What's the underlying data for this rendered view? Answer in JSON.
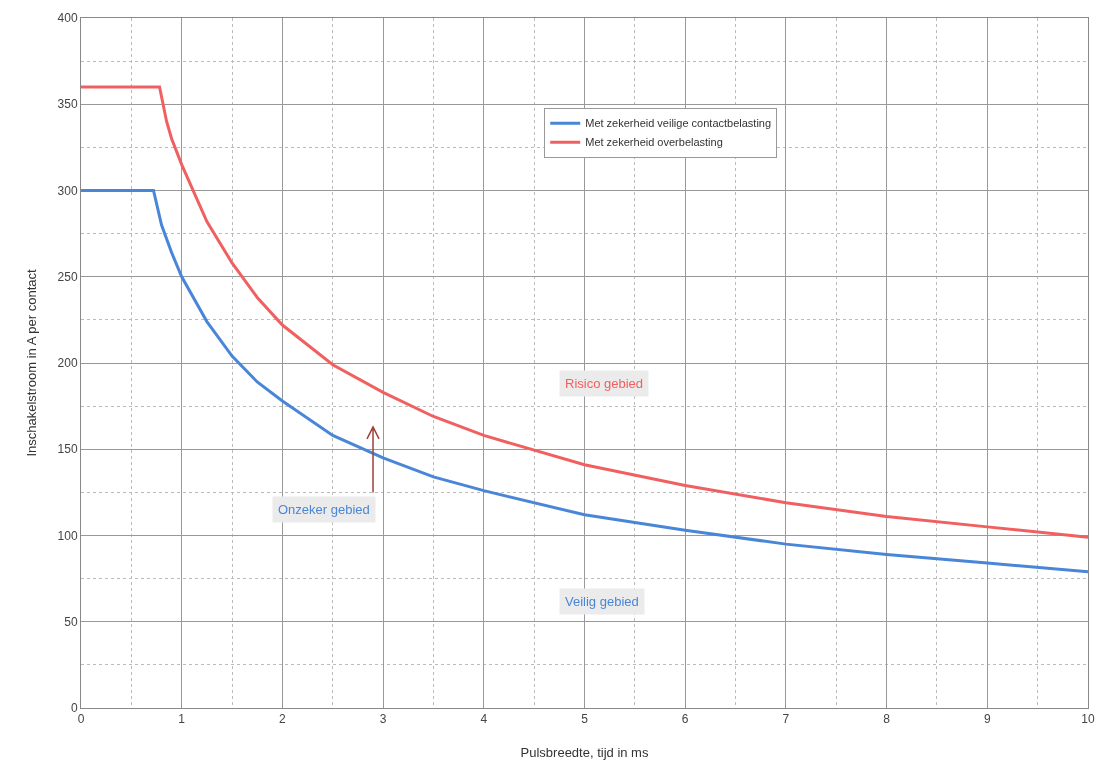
{
  "chart_data": {
    "type": "line",
    "xlabel": "Pulsbreedte, tijd in ms",
    "ylabel": "Inschakelstroom in A per contact",
    "xlim": [
      0,
      10
    ],
    "xticks": [
      0,
      1,
      2,
      3,
      4,
      5,
      6,
      7,
      8,
      9,
      10
    ],
    "ylim": [
      0,
      400
    ],
    "yticks": [
      0,
      50,
      100,
      150,
      200,
      250,
      300,
      350,
      400
    ],
    "grid": true,
    "legend": "top right",
    "marker": "none",
    "line_style": "solid",
    "series": [
      {
        "name": "Met zekerheid veilige contactbelasting",
        "color": "#4a86d8",
        "x": [
          0,
          0.72,
          0.8,
          0.9,
          1,
          1.25,
          1.5,
          1.75,
          2,
          2.5,
          3,
          3.5,
          4,
          5,
          6,
          7,
          8,
          9,
          10
        ],
        "values": [
          300,
          300,
          280,
          264,
          250,
          224,
          204,
          189,
          178,
          158,
          145,
          134,
          126,
          112,
          103,
          95,
          89,
          84,
          79
        ]
      },
      {
        "name": "Met zekerheid overbelasting",
        "color": "#f06060",
        "x": [
          0,
          0.78,
          0.85,
          0.9,
          1,
          1.25,
          1.5,
          1.75,
          2,
          2.5,
          3,
          3.5,
          4,
          5,
          6,
          7,
          8,
          9,
          10
        ],
        "values": [
          360,
          360,
          340,
          330,
          315,
          282,
          258,
          238,
          222,
          199,
          183,
          169,
          158,
          141,
          129,
          119,
          111,
          105,
          99
        ]
      }
    ],
    "annotations": [
      "Risico gebied",
      "Onzeker gebied",
      "Veilig gebied"
    ]
  }
}
